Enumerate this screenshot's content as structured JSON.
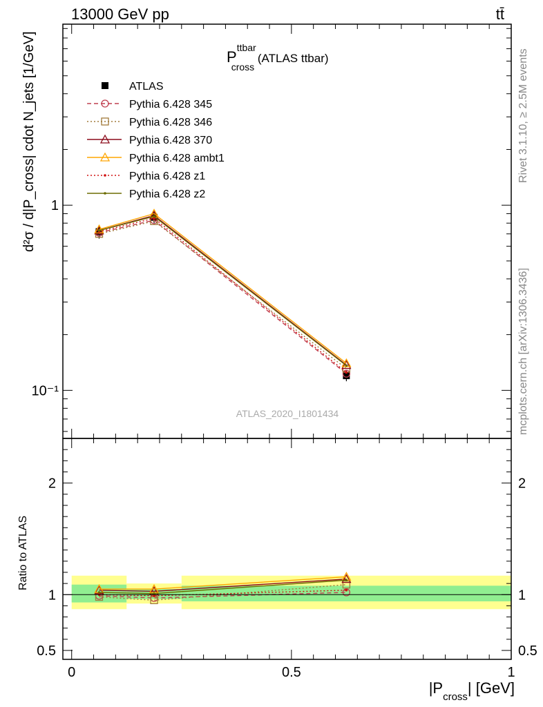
{
  "header": {
    "left": "13000 GeV pp",
    "right": "tt̄"
  },
  "side_labels": {
    "rivet": "Rivet 3.1.10, ≥ 2.5M events",
    "mcplots": "mcplots.cern.ch [arXiv:1306.3436]"
  },
  "chart_data": [
    {
      "type": "line",
      "title_main": "P",
      "title_sup": "ttbar",
      "title_sub": "cross",
      "title_rest": " (ATLAS ttbar)",
      "watermark": "ATLAS_2020_I1801434",
      "ylabel": "d²σ / d|P_cross| cdot N_jets [1/GeV]",
      "yscale": "log",
      "ylim": [
        0.055,
        9.5
      ],
      "xlim": [
        -0.02,
        1.0
      ],
      "y_tick_labels": [
        "10⁻¹",
        "1"
      ],
      "legend_position": "top-left",
      "x": [
        0.0625,
        0.1875,
        0.625
      ],
      "x_err": [
        0.0625,
        0.0625,
        0.375
      ],
      "series": [
        {
          "name": "ATLAS",
          "color": "#000000",
          "marker": "square-filled",
          "values": [
            0.72,
            0.86,
            0.12
          ],
          "errors": [
            0.06,
            0.06,
            0.008
          ]
        },
        {
          "name": "Pythia 6.428 345",
          "color": "#bf3f4f",
          "marker": "circle-open",
          "dash": "dashed",
          "values": [
            0.71,
            0.83,
            0.123
          ]
        },
        {
          "name": "Pythia 6.428 346",
          "color": "#a07a3a",
          "marker": "square-open",
          "dash": "dotted",
          "values": [
            0.7,
            0.82,
            0.131
          ]
        },
        {
          "name": "Pythia 6.428 370",
          "color": "#8b0a1a",
          "marker": "triangle-open",
          "dash": "solid",
          "values": [
            0.73,
            0.88,
            0.137
          ]
        },
        {
          "name": "Pythia 6.428 ambt1",
          "color": "#ffa500",
          "marker": "triangle-open",
          "dash": "solid",
          "values": [
            0.74,
            0.9,
            0.14
          ]
        },
        {
          "name": "Pythia 6.428 z1",
          "color": "#d01010",
          "marker": "dot",
          "dash": "dotted",
          "values": [
            0.72,
            0.85,
            0.125
          ]
        },
        {
          "name": "Pythia 6.428 z2",
          "color": "#6b6b00",
          "marker": "dot",
          "dash": "solid",
          "values": [
            0.73,
            0.87,
            0.136
          ]
        }
      ]
    },
    {
      "type": "line",
      "ylabel": "Ratio to ATLAS",
      "xlabel_main": "|P",
      "xlabel_sub": "cross",
      "xlabel_rest": "| [GeV]",
      "ylim": [
        0.42,
        2.4
      ],
      "xlim": [
        -0.02,
        1.0
      ],
      "x_tick_labels": [
        "0",
        "0.5",
        "1"
      ],
      "y_tick_labels": [
        "0.5",
        "1",
        "2"
      ],
      "x": [
        0.0625,
        0.1875,
        0.625
      ],
      "bands": [
        {
          "xmin": 0.0,
          "xmax": 0.125,
          "green": [
            0.93,
            1.09
          ],
          "yellow": [
            0.87,
            1.17
          ]
        },
        {
          "xmin": 0.125,
          "xmax": 0.25,
          "green": [
            0.96,
            1.05
          ],
          "yellow": [
            0.92,
            1.1
          ]
        },
        {
          "xmin": 0.25,
          "xmax": 1.0,
          "green": [
            0.94,
            1.08
          ],
          "yellow": [
            0.87,
            1.17
          ]
        }
      ],
      "series": [
        {
          "name": "Pythia 6.428 345",
          "values": [
            0.99,
            0.97,
            1.02
          ]
        },
        {
          "name": "Pythia 6.428 346",
          "values": [
            0.98,
            0.95,
            1.09
          ]
        },
        {
          "name": "Pythia 6.428 370",
          "values": [
            1.04,
            1.03,
            1.14
          ]
        },
        {
          "name": "Pythia 6.428 ambt1",
          "values": [
            1.05,
            1.05,
            1.16
          ]
        },
        {
          "name": "Pythia 6.428 z1",
          "values": [
            1.0,
            0.99,
            1.04
          ]
        },
        {
          "name": "Pythia 6.428 z2",
          "values": [
            1.02,
            1.01,
            1.13
          ]
        }
      ]
    }
  ]
}
